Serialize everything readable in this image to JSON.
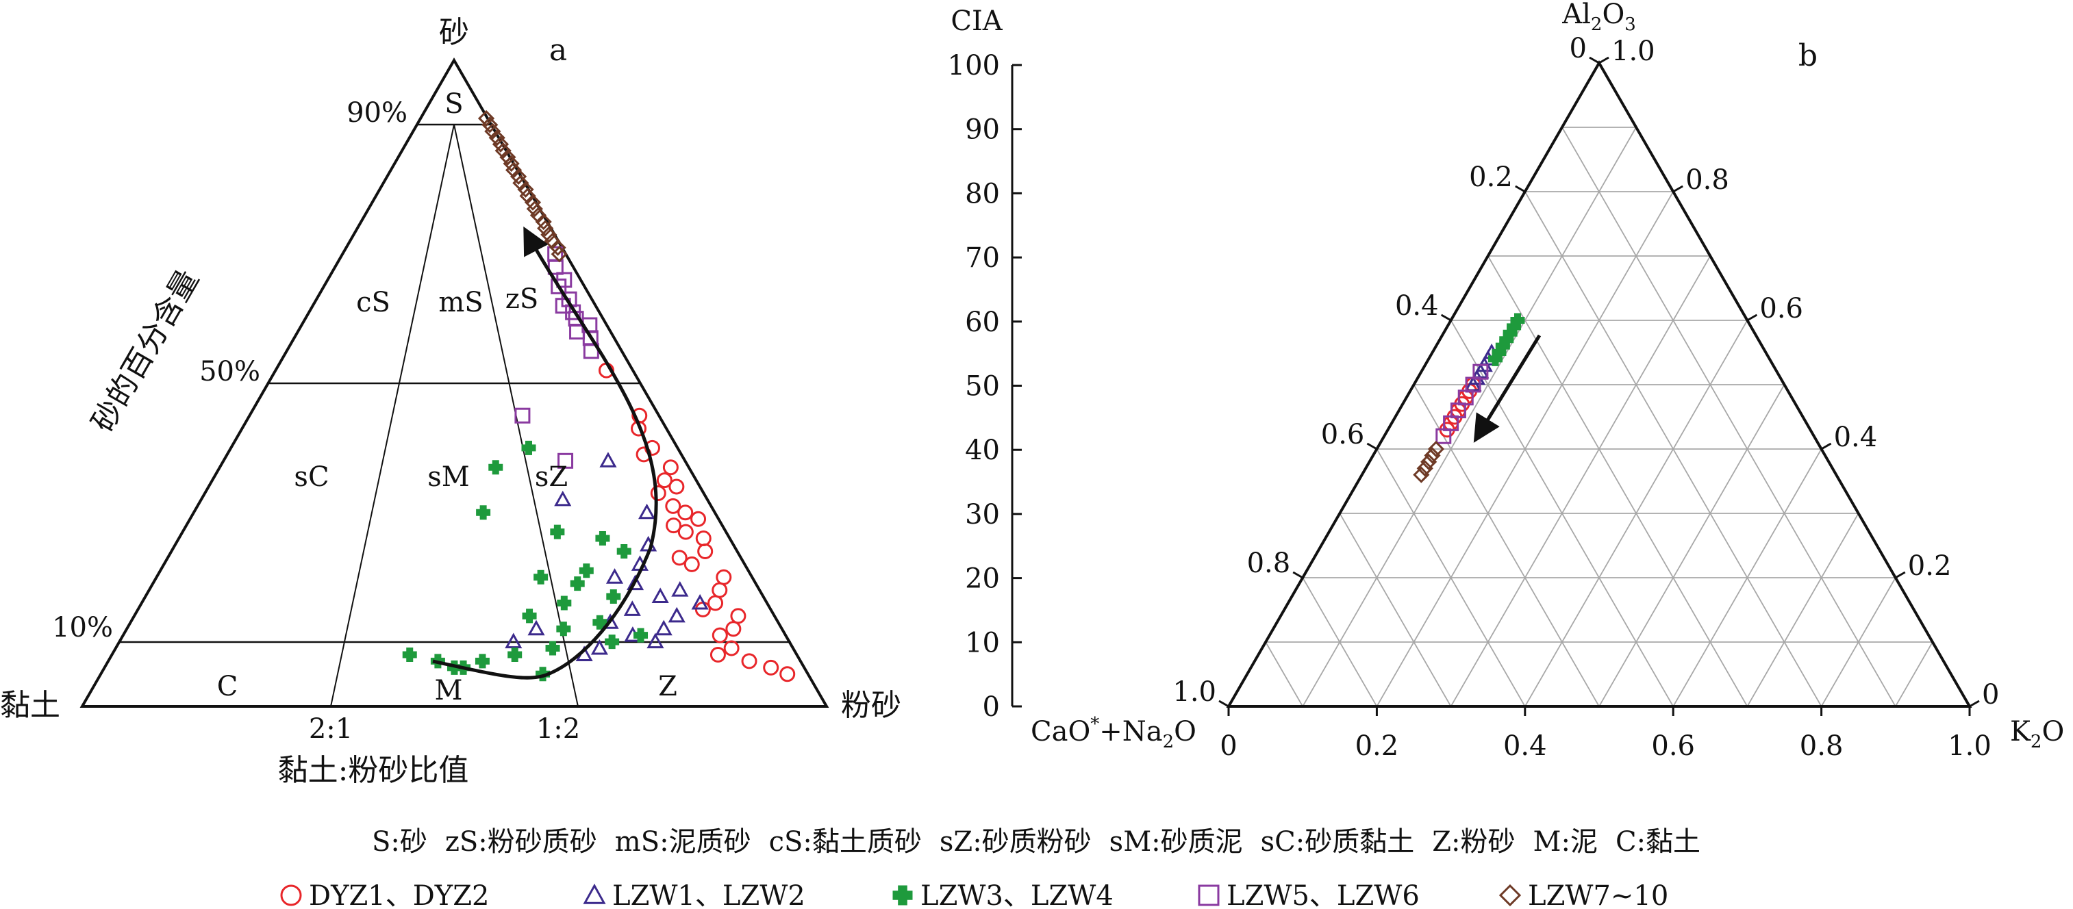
{
  "panel_a": {
    "panel_label": "a",
    "apex_top": "砂",
    "apex_left": "黏土",
    "apex_right": "粉砂",
    "side_axis_title": "砂的百分含量",
    "bottom_axis_title": "黏土:粉砂比值",
    "pct_labels": [
      "90%",
      "50%",
      "10%"
    ],
    "ratio_labels": [
      "2:1",
      "1:2"
    ],
    "zones": [
      "S",
      "cS",
      "mS",
      "zS",
      "sC",
      "sM",
      "sZ",
      "C",
      "M",
      "Z"
    ]
  },
  "panel_b": {
    "panel_label": "b",
    "apex_top": "Al",
    "apex_top_sub1": "2",
    "apex_top_mid": "O",
    "apex_top_sub2": "3",
    "apex_left_a": "CaO",
    "apex_left_sup": "*",
    "apex_left_b": "+Na",
    "apex_left_sub": "2",
    "apex_left_c": "O",
    "apex_right_a": "K",
    "apex_right_sub": "2",
    "apex_right_b": "O",
    "cia_title": "CIA",
    "cia_ticks": [
      "0",
      "10",
      "20",
      "30",
      "40",
      "50",
      "60",
      "70",
      "80",
      "90",
      "100"
    ],
    "bottom_ticks": [
      "0",
      "0.2",
      "0.4",
      "0.6",
      "0.8",
      "1.0"
    ],
    "left_ticks": [
      "1.0",
      "0.8",
      "0.6",
      "0.4",
      "0.2",
      "0"
    ],
    "right_ticks": [
      "0",
      "0.2",
      "0.4",
      "0.6",
      "0.8",
      "1.0"
    ]
  },
  "legend": {
    "abbreviations": [
      "S:砂",
      "zS:粉砂质砂",
      "mS:泥质砂",
      "cS:黏土质砂",
      "sZ:砂质粉砂",
      "sM:砂质泥",
      "sC:砂质黏土",
      "Z:粉砂",
      "M:泥",
      "C:黏土"
    ],
    "series": [
      {
        "label": "DYZ1、DYZ2",
        "marker": "circle",
        "color": "#e8262a"
      },
      {
        "label": "LZW1、LZW2",
        "marker": "triangle",
        "color": "#3c2a8c"
      },
      {
        "label": "LZW3、LZW4",
        "marker": "cross",
        "color": "#1e9a3c"
      },
      {
        "label": "LZW5、LZW6",
        "marker": "square",
        "color": "#8a3aa0"
      },
      {
        "label": "LZW7~10",
        "marker": "diamond",
        "color": "#6e3a26"
      }
    ]
  },
  "chart_data": [
    {
      "type": "scatter",
      "title": "",
      "subtype": "ternary sand-silt-clay (Folk)",
      "axes": [
        "sand %",
        "clay:silt ratio"
      ],
      "series": [
        {
          "name": "DYZ1、DYZ2",
          "points": [
            [
              52,
              0.08
            ],
            [
              45,
              0.05
            ],
            [
              40,
              0.06
            ],
            [
              35,
              0.07
            ],
            [
              30,
              0.06
            ],
            [
              27,
              0.08
            ],
            [
              24,
              0.06
            ],
            [
              22,
              0.1
            ],
            [
              18,
              0.07
            ],
            [
              15,
              0.12
            ],
            [
              12,
              0.08
            ],
            [
              9,
              0.1
            ],
            [
              6,
              0.05
            ],
            [
              5,
              0.03
            ],
            [
              7,
              0.08
            ],
            [
              37,
              0.04
            ],
            [
              33,
              0.1
            ],
            [
              29,
              0.04
            ],
            [
              20,
              0.05
            ],
            [
              16,
              0.09
            ],
            [
              26,
              0.05
            ],
            [
              31,
              0.08
            ],
            [
              39,
              0.09
            ],
            [
              43,
              0.07
            ],
            [
              14,
              0.06
            ],
            [
              11,
              0.11
            ],
            [
              8,
              0.13
            ],
            [
              23,
              0.12
            ],
            [
              28,
              0.1
            ],
            [
              34,
              0.05
            ]
          ]
        },
        {
          "name": "LZW1、LZW2",
          "points": [
            [
              38,
              0.2
            ],
            [
              32,
              0.4
            ],
            [
              30,
              0.15
            ],
            [
              25,
              0.18
            ],
            [
              22,
              0.22
            ],
            [
              20,
              0.3
            ],
            [
              19,
              0.25
            ],
            [
              18,
              0.15
            ],
            [
              17,
              0.2
            ],
            [
              16,
              0.12
            ],
            [
              15,
              0.28
            ],
            [
              14,
              0.18
            ],
            [
              13,
              0.35
            ],
            [
              12,
              0.22
            ],
            [
              11,
              0.3
            ],
            [
              10,
              0.25
            ],
            [
              9,
              0.4
            ],
            [
              8,
              0.45
            ],
            [
              12,
              0.6
            ],
            [
              10,
              0.7
            ]
          ]
        },
        {
          "name": "LZW3、LZW4",
          "points": [
            [
              40,
              0.5
            ],
            [
              37,
              0.7
            ],
            [
              30,
              0.8
            ],
            [
              27,
              0.45
            ],
            [
              26,
              0.3
            ],
            [
              24,
              0.25
            ],
            [
              21,
              0.38
            ],
            [
              20,
              0.55
            ],
            [
              19,
              0.42
            ],
            [
              17,
              0.32
            ],
            [
              16,
              0.48
            ],
            [
              14,
              0.62
            ],
            [
              13,
              0.38
            ],
            [
              12,
              0.5
            ],
            [
              11,
              0.28
            ],
            [
              10,
              0.36
            ],
            [
              9,
              0.55
            ],
            [
              8,
              0.7
            ],
            [
              7,
              0.85
            ],
            [
              6,
              0.95
            ],
            [
              7,
              1.1
            ],
            [
              8,
              1.3
            ],
            [
              6,
              1.0
            ],
            [
              5,
              0.6
            ]
          ]
        },
        {
          "name": "LZW5、LZW6",
          "points": [
            [
              45,
              0.5
            ],
            [
              38,
              0.35
            ],
            [
              55,
              0.1
            ],
            [
              57,
              0.08
            ],
            [
              58,
              0.12
            ],
            [
              60,
              0.1
            ],
            [
              62,
              0.13
            ],
            [
              63,
              0.09
            ],
            [
              65,
              0.11
            ],
            [
              66,
              0.07
            ],
            [
              68,
              0.08
            ],
            [
              70,
              0.05
            ],
            [
              59,
              0.06
            ],
            [
              61,
              0.1
            ]
          ]
        },
        {
          "name": "LZW7~10",
          "points": [
            [
              91,
              0.02
            ],
            [
              90,
              0.02
            ],
            [
              89,
              0.03
            ],
            [
              88,
              0.02
            ],
            [
              87,
              0.02
            ],
            [
              86,
              0.03
            ],
            [
              85,
              0.02
            ],
            [
              84,
              0.02
            ],
            [
              83,
              0.03
            ],
            [
              82,
              0.02
            ],
            [
              81,
              0.03
            ],
            [
              80,
              0.02
            ],
            [
              79,
              0.03
            ],
            [
              78,
              0.02
            ],
            [
              77,
              0.03
            ],
            [
              76,
              0.03
            ],
            [
              75,
              0.02
            ],
            [
              74,
              0.03
            ],
            [
              73,
              0.03
            ],
            [
              72,
              0.03
            ],
            [
              71,
              0.02
            ],
            [
              70,
              0.03
            ]
          ]
        }
      ]
    },
    {
      "type": "scatter",
      "title": "",
      "subtype": "ternary A-CN-K",
      "axes": [
        "Al2O3",
        "CaO*+Na2O",
        "K2O"
      ],
      "cia_range": [
        0,
        100
      ],
      "series": [
        {
          "name": "DYZ1、DYZ2",
          "points": [
            [
              0.5,
              0.42,
              0.08
            ],
            [
              0.49,
              0.43,
              0.08
            ],
            [
              0.48,
              0.44,
              0.08
            ],
            [
              0.47,
              0.45,
              0.08
            ],
            [
              0.46,
              0.46,
              0.08
            ],
            [
              0.45,
              0.47,
              0.08
            ],
            [
              0.44,
              0.48,
              0.08
            ],
            [
              0.43,
              0.49,
              0.08
            ]
          ]
        },
        {
          "name": "LZW1、LZW2",
          "points": [
            [
              0.55,
              0.37,
              0.08
            ],
            [
              0.54,
              0.38,
              0.08
            ],
            [
              0.53,
              0.39,
              0.08
            ],
            [
              0.52,
              0.4,
              0.08
            ],
            [
              0.51,
              0.41,
              0.08
            ],
            [
              0.5,
              0.42,
              0.08
            ]
          ]
        },
        {
          "name": "LZW3、LZW4",
          "points": [
            [
              0.6,
              0.31,
              0.09
            ],
            [
              0.59,
              0.32,
              0.09
            ],
            [
              0.58,
              0.33,
              0.09
            ],
            [
              0.57,
              0.34,
              0.09
            ],
            [
              0.56,
              0.35,
              0.09
            ],
            [
              0.55,
              0.36,
              0.09
            ],
            [
              0.54,
              0.37,
              0.09
            ]
          ]
        },
        {
          "name": "LZW5、LZW6",
          "points": [
            [
              0.52,
              0.4,
              0.08
            ],
            [
              0.5,
              0.42,
              0.08
            ],
            [
              0.48,
              0.44,
              0.08
            ],
            [
              0.46,
              0.46,
              0.08
            ],
            [
              0.44,
              0.48,
              0.08
            ],
            [
              0.42,
              0.5,
              0.08
            ]
          ]
        },
        {
          "name": "LZW7~10",
          "points": [
            [
              0.4,
              0.52,
              0.08
            ],
            [
              0.39,
              0.53,
              0.08
            ],
            [
              0.38,
              0.54,
              0.08
            ],
            [
              0.37,
              0.55,
              0.08
            ],
            [
              0.36,
              0.56,
              0.08
            ]
          ]
        }
      ]
    }
  ]
}
